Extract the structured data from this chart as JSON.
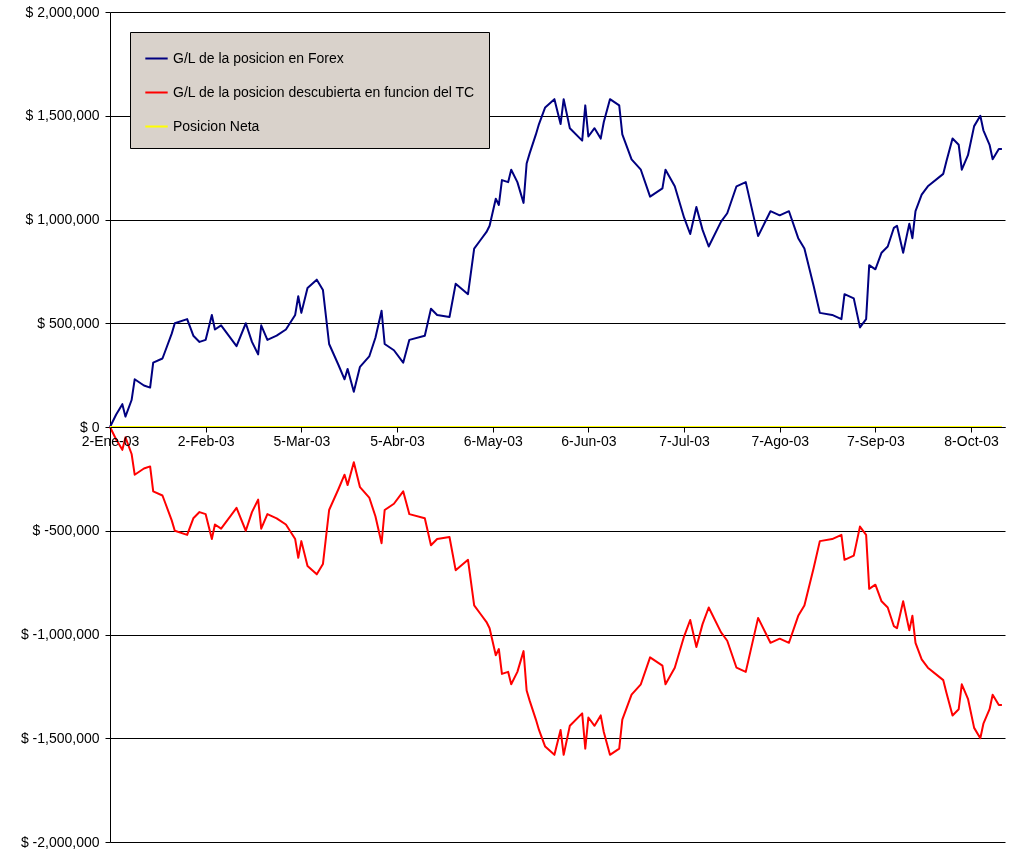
{
  "chart_data": {
    "type": "line",
    "x": [
      "2003-01-02",
      "2003-01-04",
      "2003-01-06",
      "2003-01-07",
      "2003-01-09",
      "2003-01-10",
      "2003-01-13",
      "2003-01-15",
      "2003-01-16",
      "2003-01-19",
      "2003-01-20",
      "2003-01-22",
      "2003-01-23",
      "2003-01-27",
      "2003-01-29",
      "2003-01-31",
      "2003-02-02",
      "2003-02-04",
      "2003-02-05",
      "2003-02-07",
      "2003-02-12",
      "2003-02-15",
      "2003-02-17",
      "2003-02-19",
      "2003-02-20",
      "2003-02-22",
      "2003-02-25",
      "2003-02-28",
      "2003-03-03",
      "2003-03-04",
      "2003-03-05",
      "2003-03-07",
      "2003-03-10",
      "2003-03-12",
      "2003-03-14",
      "2003-03-17",
      "2003-03-19",
      "2003-03-20",
      "2003-03-22",
      "2003-03-24",
      "2003-03-27",
      "2003-03-29",
      "2003-03-31",
      "2003-04-01",
      "2003-04-04",
      "2003-04-07",
      "2003-04-09",
      "2003-04-14",
      "2003-04-16",
      "2003-04-18",
      "2003-04-22",
      "2003-04-24",
      "2003-04-28",
      "2003-04-30",
      "2003-05-02",
      "2003-05-04",
      "2003-05-05",
      "2003-05-07",
      "2003-05-08",
      "2003-05-09",
      "2003-05-11",
      "2003-05-12",
      "2003-05-14",
      "2003-05-16",
      "2003-05-17",
      "2003-05-18",
      "2003-05-20",
      "2003-05-21",
      "2003-05-23",
      "2003-05-26",
      "2003-05-28",
      "2003-05-29",
      "2003-05-31",
      "2003-06-04",
      "2003-06-05",
      "2003-06-06",
      "2003-06-08",
      "2003-06-10",
      "2003-06-11",
      "2003-06-13",
      "2003-06-16",
      "2003-06-17",
      "2003-06-20",
      "2003-06-23",
      "2003-06-26",
      "2003-06-30",
      "2003-07-01",
      "2003-07-04",
      "2003-07-07",
      "2003-07-09",
      "2003-07-11",
      "2003-07-13",
      "2003-07-15",
      "2003-07-19",
      "2003-07-21",
      "2003-07-24",
      "2003-07-27",
      "2003-07-31",
      "2003-08-04",
      "2003-08-07",
      "2003-08-10",
      "2003-08-13",
      "2003-08-15",
      "2003-08-18",
      "2003-08-20",
      "2003-08-24",
      "2003-08-27",
      "2003-08-28",
      "2003-08-31",
      "2003-09-02",
      "2003-09-04",
      "2003-09-05",
      "2003-09-07",
      "2003-09-09",
      "2003-09-11",
      "2003-09-13",
      "2003-09-14",
      "2003-09-16",
      "2003-09-18",
      "2003-09-19",
      "2003-09-20",
      "2003-09-22",
      "2003-09-24",
      "2003-09-29",
      "2003-09-30",
      "2003-10-02",
      "2003-10-04",
      "2003-10-05",
      "2003-10-07",
      "2003-10-09",
      "2003-10-11",
      "2003-10-12",
      "2003-10-14",
      "2003-10-15",
      "2003-10-17",
      "2003-10-18"
    ],
    "series": [
      {
        "name": "G/L de la posicion en Forex",
        "color": "#000080",
        "values": [
          0,
          60000,
          110000,
          50000,
          130000,
          230000,
          200000,
          190000,
          310000,
          330000,
          370000,
          450000,
          500000,
          520000,
          440000,
          410000,
          420000,
          540000,
          470000,
          490000,
          390000,
          500000,
          410000,
          350000,
          490000,
          420000,
          440000,
          470000,
          540000,
          630000,
          550000,
          670000,
          710000,
          660000,
          400000,
          300000,
          230000,
          280000,
          170000,
          290000,
          340000,
          430000,
          560000,
          400000,
          370000,
          310000,
          420000,
          440000,
          570000,
          540000,
          530000,
          690000,
          640000,
          860000,
          900000,
          940000,
          970000,
          1100000,
          1070000,
          1190000,
          1180000,
          1240000,
          1180000,
          1080000,
          1270000,
          1320000,
          1410000,
          1460000,
          1540000,
          1580000,
          1460000,
          1580000,
          1440000,
          1380000,
          1550000,
          1400000,
          1440000,
          1390000,
          1470000,
          1580000,
          1550000,
          1410000,
          1290000,
          1240000,
          1110000,
          1150000,
          1240000,
          1160000,
          1010000,
          930000,
          1060000,
          950000,
          870000,
          990000,
          1030000,
          1160000,
          1180000,
          920000,
          1040000,
          1020000,
          1040000,
          910000,
          860000,
          680000,
          550000,
          540000,
          520000,
          640000,
          620000,
          480000,
          520000,
          780000,
          760000,
          840000,
          870000,
          960000,
          970000,
          840000,
          980000,
          910000,
          1040000,
          1120000,
          1160000,
          1220000,
          1280000,
          1390000,
          1360000,
          1240000,
          1310000,
          1450000,
          1500000,
          1430000,
          1360000,
          1290000,
          1340000,
          1340000
        ]
      },
      {
        "name": "G/L de la posicion descubierta en funcion del TC",
        "color": "#ff0000",
        "values": [
          0,
          -60000,
          -110000,
          -50000,
          -130000,
          -230000,
          -200000,
          -190000,
          -310000,
          -330000,
          -370000,
          -450000,
          -500000,
          -520000,
          -440000,
          -410000,
          -420000,
          -540000,
          -470000,
          -490000,
          -390000,
          -500000,
          -410000,
          -350000,
          -490000,
          -420000,
          -440000,
          -470000,
          -540000,
          -630000,
          -550000,
          -670000,
          -710000,
          -660000,
          -400000,
          -300000,
          -230000,
          -280000,
          -170000,
          -290000,
          -340000,
          -430000,
          -560000,
          -400000,
          -370000,
          -310000,
          -420000,
          -440000,
          -570000,
          -540000,
          -530000,
          -690000,
          -640000,
          -860000,
          -900000,
          -940000,
          -970000,
          -1100000,
          -1070000,
          -1190000,
          -1180000,
          -1240000,
          -1180000,
          -1080000,
          -1270000,
          -1320000,
          -1410000,
          -1460000,
          -1540000,
          -1580000,
          -1460000,
          -1580000,
          -1440000,
          -1380000,
          -1550000,
          -1400000,
          -1440000,
          -1390000,
          -1470000,
          -1580000,
          -1550000,
          -1410000,
          -1290000,
          -1240000,
          -1110000,
          -1150000,
          -1240000,
          -1160000,
          -1010000,
          -930000,
          -1060000,
          -950000,
          -870000,
          -990000,
          -1030000,
          -1160000,
          -1180000,
          -920000,
          -1040000,
          -1020000,
          -1040000,
          -910000,
          -860000,
          -680000,
          -550000,
          -540000,
          -520000,
          -640000,
          -620000,
          -480000,
          -520000,
          -780000,
          -760000,
          -840000,
          -870000,
          -960000,
          -970000,
          -840000,
          -980000,
          -910000,
          -1040000,
          -1120000,
          -1160000,
          -1220000,
          -1280000,
          -1390000,
          -1360000,
          -1240000,
          -1310000,
          -1450000,
          -1500000,
          -1430000,
          -1360000,
          -1290000,
          -1340000,
          -1340000
        ]
      },
      {
        "name": "Posicion Neta",
        "color": "#ffff00",
        "x": [
          "2003-01-02",
          "2003-10-18"
        ],
        "values": [
          0,
          0
        ]
      }
    ],
    "xlim": [
      "2003-01-02",
      "2003-10-19"
    ],
    "xticks": [
      {
        "value": "2003-01-02",
        "label": "2-Ene-03"
      },
      {
        "value": "2003-02-02",
        "label": "2-Feb-03"
      },
      {
        "value": "2003-03-05",
        "label": "5-Mar-03"
      },
      {
        "value": "2003-04-05",
        "label": "5-Abr-03"
      },
      {
        "value": "2003-05-06",
        "label": "6-May-03"
      },
      {
        "value": "2003-06-06",
        "label": "6-Jun-03"
      },
      {
        "value": "2003-07-07",
        "label": "7-Jul-03"
      },
      {
        "value": "2003-08-07",
        "label": "7-Ago-03"
      },
      {
        "value": "2003-09-07",
        "label": "7-Sep-03"
      },
      {
        "value": "2003-10-08",
        "label": "8-Oct-03"
      }
    ],
    "ylim": [
      -2000000,
      2000000
    ],
    "yticks": [
      {
        "value": -2000000,
        "label": "$ -2,000,000"
      },
      {
        "value": -1500000,
        "label": "$ -1,500,000"
      },
      {
        "value": -1000000,
        "label": "$ -1,000,000"
      },
      {
        "value": -500000,
        "label": "$ -500,000"
      },
      {
        "value": 0,
        "label": "$ 0"
      },
      {
        "value": 500000,
        "label": "$ 500,000"
      },
      {
        "value": 1000000,
        "label": "$ 1,000,000"
      },
      {
        "value": 1500000,
        "label": "$ 1,500,000"
      },
      {
        "value": 2000000,
        "label": "$ 2,000,000"
      }
    ],
    "grid": "y",
    "legend": "top left",
    "marker": "none",
    "line_style": "solid"
  }
}
